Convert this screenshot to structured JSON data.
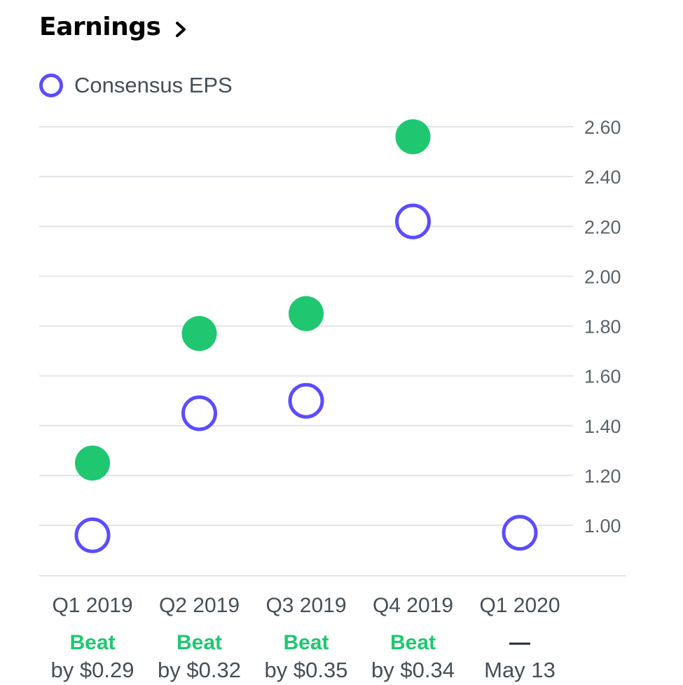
{
  "header": {
    "title": "Earnings"
  },
  "colors": {
    "consensus": "#5b4cff",
    "actual_beat": "#1fc770",
    "beat_text": "#1fc770",
    "grid": "#e0e4e9"
  },
  "chart_data": {
    "type": "scatter",
    "categories": [
      "Q1 2019",
      "Q2 2019",
      "Q3 2019",
      "Q4 2019",
      "Q1 2020"
    ],
    "series": [
      {
        "name": "Consensus EPS",
        "style": "hollow-circle",
        "values": [
          0.96,
          1.45,
          1.5,
          2.22,
          0.97
        ]
      },
      {
        "style": "filled-circle",
        "values": [
          1.25,
          1.77,
          1.85,
          2.56,
          null
        ]
      }
    ],
    "yticks": [
      "2.60",
      "2.40",
      "2.20",
      "2.00",
      "1.80",
      "1.60",
      "1.40",
      "1.20",
      "1.00"
    ],
    "ylim": [
      0.8,
      2.6
    ],
    "legend": "top-left",
    "grid": true,
    "results": [
      {
        "status": "Beat",
        "detail": "by $0.29"
      },
      {
        "status": "Beat",
        "detail": "by $0.32"
      },
      {
        "status": "Beat",
        "detail": "by $0.35"
      },
      {
        "status": "Beat",
        "detail": "by $0.34"
      },
      {
        "status": "—",
        "detail": "May 13"
      }
    ]
  }
}
